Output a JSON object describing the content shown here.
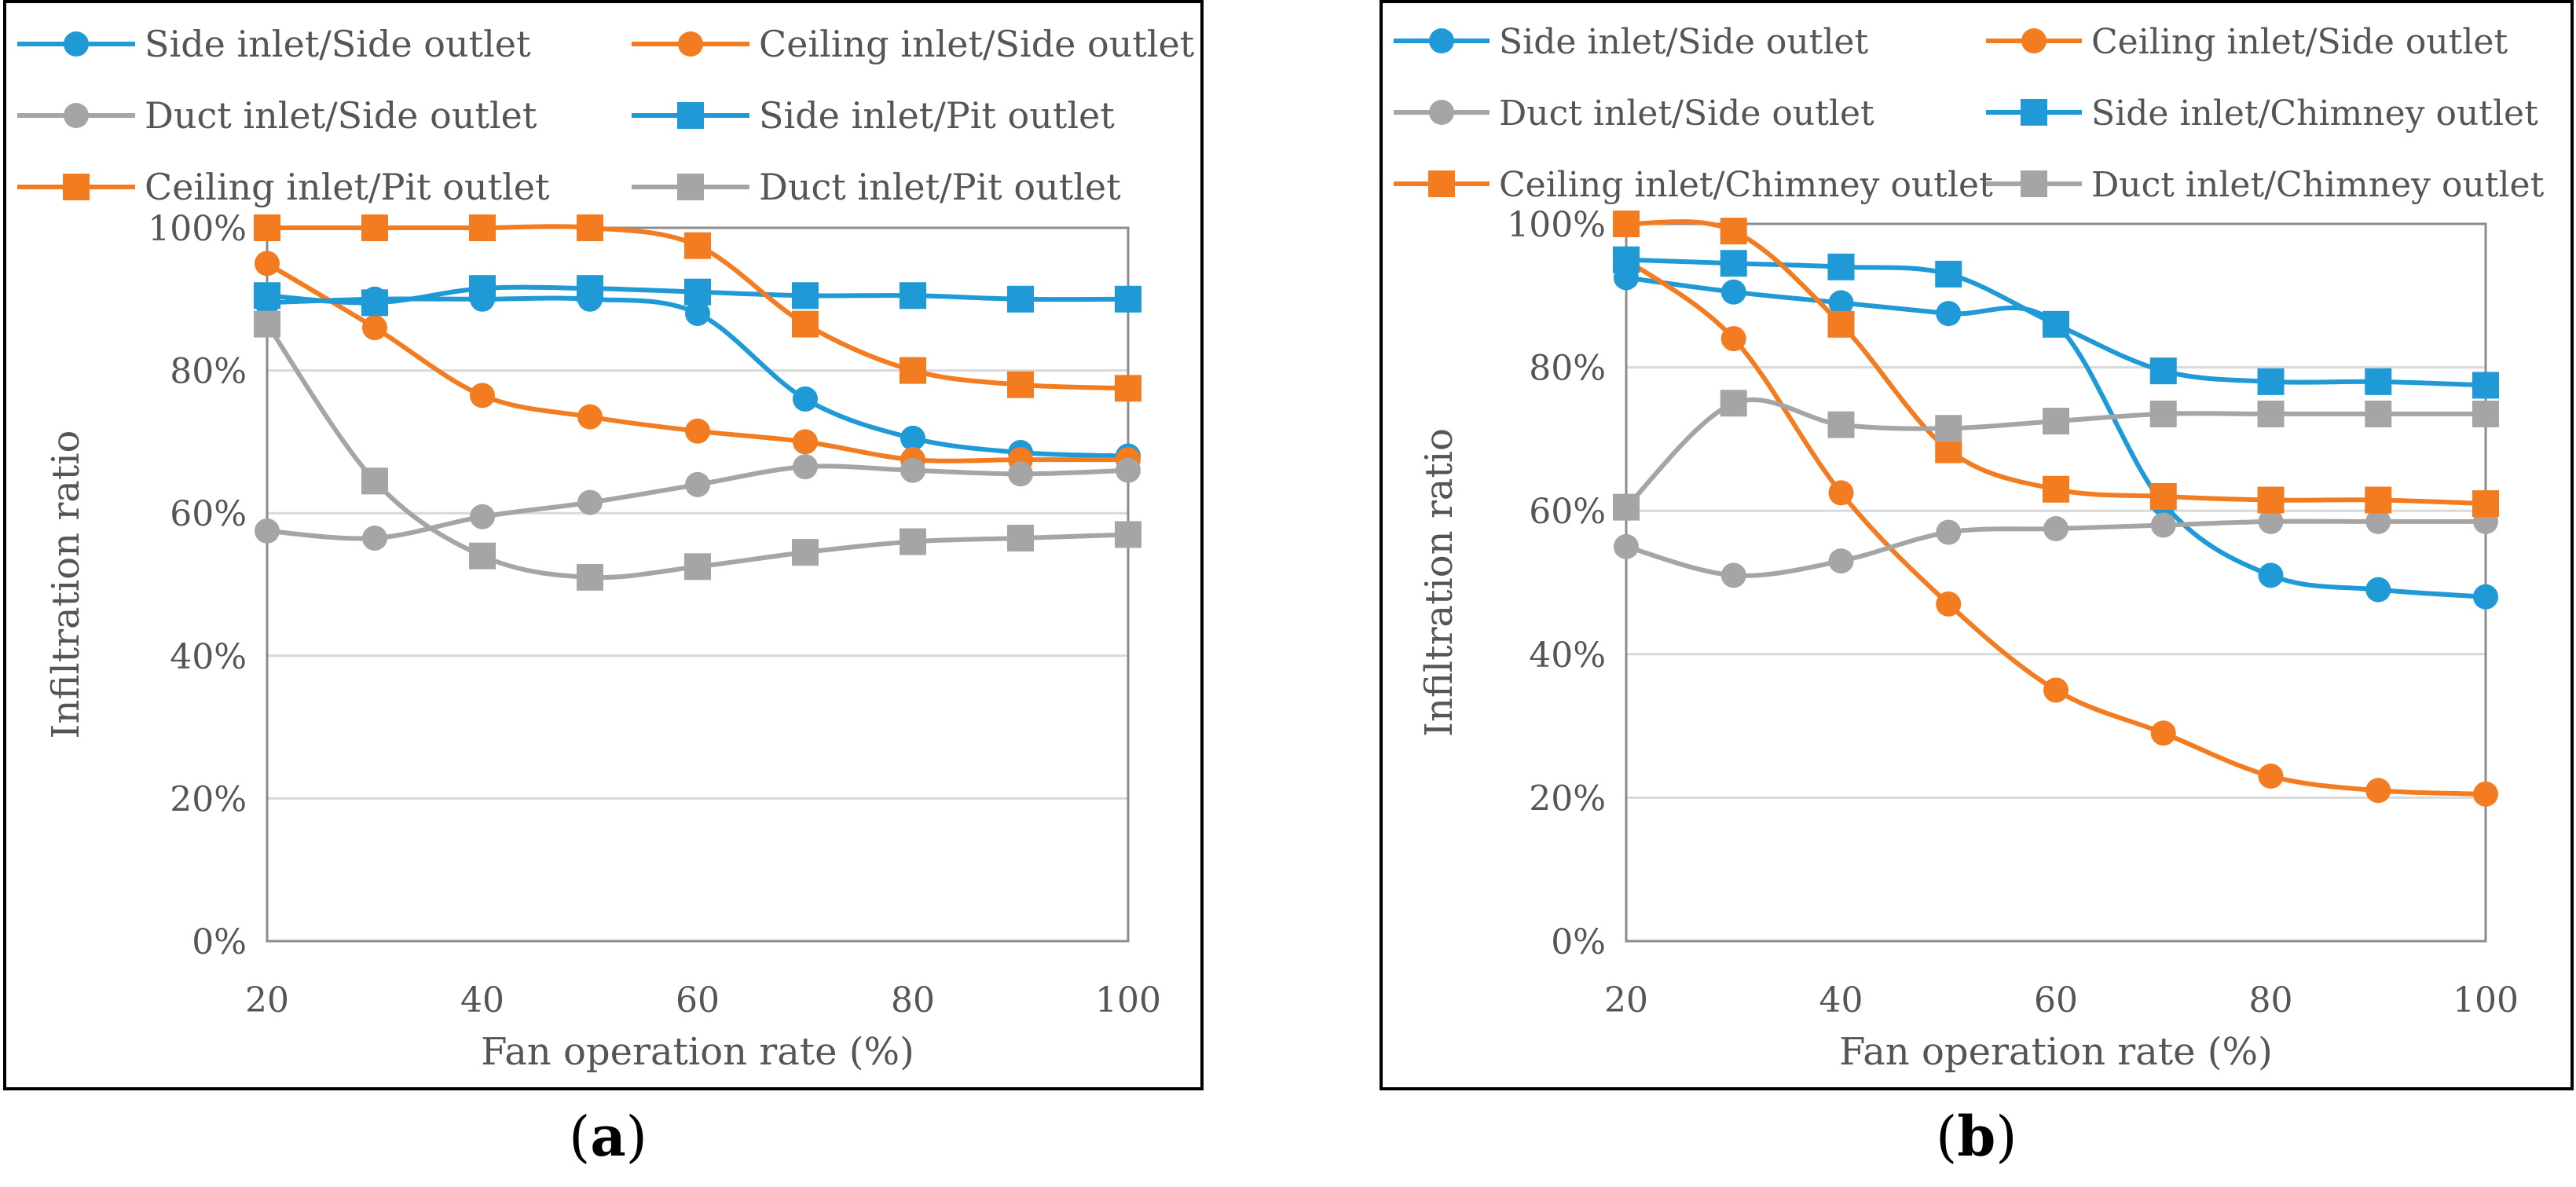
{
  "chart_data": [
    {
      "type": "line",
      "panel_label": "a",
      "xlabel": "Fan operation rate (%)",
      "ylabel": "Infiltration ratio",
      "x": [
        20,
        30,
        40,
        50,
        60,
        70,
        80,
        90,
        100
      ],
      "xlim": [
        20,
        100
      ],
      "xticks": [
        "20",
        "40",
        "60",
        "80",
        "100"
      ],
      "xtick_values": [
        20,
        40,
        60,
        80,
        100
      ],
      "ylim": [
        0,
        100
      ],
      "yticks": [
        "0%",
        "20%",
        "40%",
        "60%",
        "80%",
        "100%"
      ],
      "ytick_values": [
        0,
        20,
        40,
        60,
        80,
        100
      ],
      "grid": "horizontal",
      "legend_position": "top",
      "series": [
        {
          "name": "Side inlet/Side outlet",
          "color": "#1F9AD6",
          "marker": "circle",
          "values": [
            89.5,
            90,
            90,
            90,
            88,
            76,
            70.5,
            68.5,
            68
          ]
        },
        {
          "name": "Ceiling inlet/Side outlet",
          "color": "#F47C20",
          "marker": "circle",
          "values": [
            95,
            86,
            76.5,
            73.5,
            71.5,
            70,
            67.5,
            67.5,
            67.5
          ]
        },
        {
          "name": "Duct inlet/Side outlet",
          "color": "#A5A5A5",
          "marker": "circle",
          "values": [
            57.5,
            56.5,
            59.5,
            61.5,
            64,
            66.5,
            66,
            65.5,
            66
          ]
        },
        {
          "name": "Side inlet/Pit outlet",
          "color": "#1F9AD6",
          "marker": "square",
          "values": [
            90.5,
            89.5,
            91.5,
            91.5,
            91,
            90.5,
            90.5,
            90,
            90
          ]
        },
        {
          "name": "Ceiling inlet/Pit outlet",
          "color": "#F47C20",
          "marker": "square",
          "values": [
            100,
            100,
            100,
            100,
            97.5,
            86.5,
            80,
            78,
            77.5
          ]
        },
        {
          "name": "Duct inlet/Pit outlet",
          "color": "#A5A5A5",
          "marker": "square",
          "values": [
            86.5,
            64.5,
            54,
            51,
            52.5,
            54.5,
            56,
            56.5,
            57
          ]
        }
      ]
    },
    {
      "type": "line",
      "panel_label": "b",
      "xlabel": "Fan operation rate (%)",
      "ylabel": "Infiltration ratio",
      "x": [
        20,
        30,
        40,
        50,
        60,
        70,
        80,
        90,
        100
      ],
      "xlim": [
        20,
        100
      ],
      "xticks": [
        "20",
        "40",
        "60",
        "80",
        "100"
      ],
      "xtick_values": [
        20,
        40,
        60,
        80,
        100
      ],
      "ylim": [
        0,
        100
      ],
      "yticks": [
        "0%",
        "20%",
        "40%",
        "60%",
        "80%",
        "100%"
      ],
      "ytick_values": [
        0,
        20,
        40,
        60,
        80,
        100
      ],
      "grid": "horizontal",
      "legend_position": "top",
      "series": [
        {
          "name": "Side inlet/Side outlet",
          "color": "#1F9AD6",
          "marker": "circle",
          "values": [
            92.5,
            90.5,
            89,
            87.5,
            86,
            61,
            51,
            49,
            48
          ]
        },
        {
          "name": "Ceiling inlet/Side outlet",
          "color": "#F47C20",
          "marker": "circle",
          "values": [
            95,
            84,
            62.5,
            47,
            35,
            29,
            23,
            21,
            20.5
          ]
        },
        {
          "name": "Duct inlet/Side outlet",
          "color": "#A5A5A5",
          "marker": "circle",
          "values": [
            55,
            51,
            53,
            57,
            57.5,
            58,
            58.5,
            58.5,
            58.5
          ]
        },
        {
          "name": "Side inlet/Chimney outlet",
          "color": "#1F9AD6",
          "marker": "square",
          "values": [
            95,
            94.5,
            94,
            93,
            86,
            79.5,
            78,
            78,
            77.5
          ]
        },
        {
          "name": "Ceiling inlet/Chimney outlet",
          "color": "#F47C20",
          "marker": "square",
          "values": [
            100,
            99,
            86,
            68.5,
            63,
            62,
            61.5,
            61.5,
            61
          ]
        },
        {
          "name": "Duct inlet/Chimney outlet",
          "color": "#A5A5A5",
          "marker": "square",
          "values": [
            60.5,
            75,
            72,
            71.5,
            72.5,
            73.5,
            73.5,
            73.5,
            73.5
          ]
        }
      ]
    }
  ],
  "captions": [
    "(a)",
    "(b)"
  ]
}
